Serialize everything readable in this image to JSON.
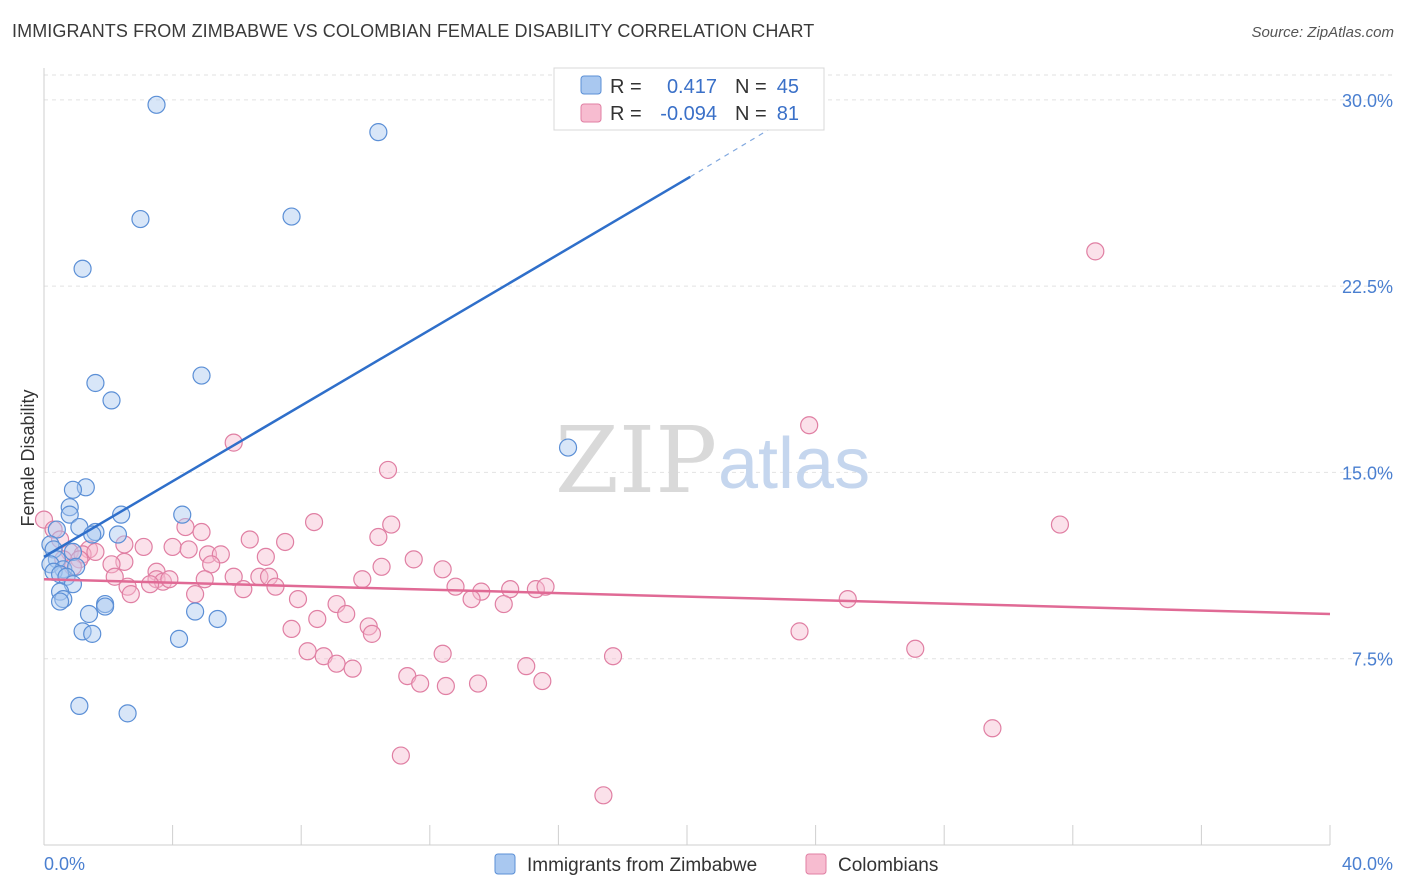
{
  "header": {
    "title": "IMMIGRANTS FROM ZIMBABWE VS COLOMBIAN FEMALE DISABILITY CORRELATION CHART",
    "source": "Source: ZipAtlas.com"
  },
  "watermark": {
    "zip": "ZIP",
    "atlas": "atlas"
  },
  "legend": {
    "r_label": "R =",
    "n_label": "N =",
    "series": [
      {
        "r": "0.417",
        "n": "45"
      },
      {
        "r": "-0.094",
        "n": "81"
      }
    ]
  },
  "chart_data": {
    "type": "scatter",
    "title": "IMMIGRANTS FROM ZIMBABWE VS COLOMBIAN FEMALE DISABILITY CORRELATION CHART",
    "xlabel": "",
    "ylabel": "Female Disability",
    "xlim": [
      0,
      40
    ],
    "ylim": [
      0,
      31
    ],
    "x_tick_labels": [
      "0.0%",
      "40.0%"
    ],
    "y_ticks": [
      7.5,
      15.0,
      22.5,
      30.0
    ],
    "y_tick_labels": [
      "7.5%",
      "15.0%",
      "22.5%",
      "30.0%"
    ],
    "grid": true,
    "legend_position": "top-center",
    "colors": {
      "zimbabwe_fill": "#a9c8f0",
      "zimbabwe_stroke": "#5b8fd6",
      "zimbabwe_line": "#2f6fca",
      "colombians_fill": "#f7bcd0",
      "colombians_stroke": "#e07fa3",
      "colombians_line": "#e06a95",
      "tick_label": "#4a7fd0",
      "grid": "#e2e2e2"
    },
    "series": [
      {
        "name": "Immigrants from Zimbabwe",
        "r": 0.417,
        "n": 45,
        "trend": {
          "x": [
            0.0,
            20.1
          ],
          "y": [
            11.6,
            26.9
          ],
          "dashed_to": [
            22.8,
            29.0
          ]
        },
        "points": [
          [
            3.5,
            29.8
          ],
          [
            10.4,
            28.7
          ],
          [
            3.0,
            25.2
          ],
          [
            7.7,
            25.3
          ],
          [
            1.2,
            23.2
          ],
          [
            1.6,
            18.6
          ],
          [
            2.1,
            17.9
          ],
          [
            4.9,
            18.9
          ],
          [
            16.3,
            16.0
          ],
          [
            1.3,
            14.4
          ],
          [
            0.9,
            14.3
          ],
          [
            0.8,
            13.6
          ],
          [
            0.8,
            13.3
          ],
          [
            2.4,
            13.3
          ],
          [
            4.3,
            13.3
          ],
          [
            0.4,
            12.7
          ],
          [
            1.1,
            12.8
          ],
          [
            1.6,
            12.6
          ],
          [
            2.3,
            12.5
          ],
          [
            1.5,
            12.5
          ],
          [
            0.2,
            12.1
          ],
          [
            0.3,
            11.9
          ],
          [
            0.9,
            11.8
          ],
          [
            0.4,
            11.5
          ],
          [
            0.2,
            11.3
          ],
          [
            0.6,
            11.1
          ],
          [
            1.0,
            11.2
          ],
          [
            0.3,
            11.0
          ],
          [
            0.5,
            10.9
          ],
          [
            0.7,
            10.8
          ],
          [
            0.9,
            10.5
          ],
          [
            0.5,
            10.2
          ],
          [
            0.6,
            9.9
          ],
          [
            0.5,
            9.8
          ],
          [
            1.9,
            9.7
          ],
          [
            1.9,
            9.6
          ],
          [
            1.4,
            9.3
          ],
          [
            4.7,
            9.4
          ],
          [
            5.4,
            9.1
          ],
          [
            1.2,
            8.6
          ],
          [
            1.5,
            8.5
          ],
          [
            4.2,
            8.3
          ],
          [
            1.1,
            5.6
          ],
          [
            2.6,
            5.3
          ]
        ]
      },
      {
        "name": "Colombians",
        "r": -0.094,
        "n": 81,
        "trend": {
          "x": [
            0.0,
            40.0
          ],
          "y": [
            10.7,
            9.3
          ]
        },
        "points": [
          [
            32.7,
            23.9
          ],
          [
            5.9,
            16.2
          ],
          [
            23.8,
            16.9
          ],
          [
            10.7,
            15.1
          ],
          [
            0.0,
            13.1
          ],
          [
            0.3,
            12.7
          ],
          [
            8.4,
            13.0
          ],
          [
            4.4,
            12.8
          ],
          [
            10.8,
            12.9
          ],
          [
            31.6,
            12.9
          ],
          [
            4.9,
            12.6
          ],
          [
            10.4,
            12.4
          ],
          [
            6.4,
            12.3
          ],
          [
            7.5,
            12.2
          ],
          [
            0.5,
            12.3
          ],
          [
            2.5,
            12.1
          ],
          [
            3.1,
            12.0
          ],
          [
            4.0,
            12.0
          ],
          [
            4.5,
            11.9
          ],
          [
            1.4,
            11.9
          ],
          [
            0.8,
            11.8
          ],
          [
            1.2,
            11.7
          ],
          [
            1.6,
            11.8
          ],
          [
            5.1,
            11.7
          ],
          [
            5.5,
            11.7
          ],
          [
            6.9,
            11.6
          ],
          [
            0.6,
            11.5
          ],
          [
            1.1,
            11.5
          ],
          [
            2.5,
            11.4
          ],
          [
            2.1,
            11.3
          ],
          [
            5.2,
            11.3
          ],
          [
            10.5,
            11.2
          ],
          [
            11.5,
            11.5
          ],
          [
            12.4,
            11.1
          ],
          [
            0.9,
            11.2
          ],
          [
            3.5,
            11.0
          ],
          [
            2.2,
            10.8
          ],
          [
            3.5,
            10.7
          ],
          [
            3.7,
            10.6
          ],
          [
            3.9,
            10.7
          ],
          [
            5.0,
            10.7
          ],
          [
            5.9,
            10.8
          ],
          [
            6.7,
            10.8
          ],
          [
            7.0,
            10.8
          ],
          [
            9.9,
            10.7
          ],
          [
            2.6,
            10.4
          ],
          [
            3.3,
            10.5
          ],
          [
            6.2,
            10.3
          ],
          [
            7.2,
            10.4
          ],
          [
            12.8,
            10.4
          ],
          [
            13.6,
            10.2
          ],
          [
            14.5,
            10.3
          ],
          [
            15.3,
            10.3
          ],
          [
            15.6,
            10.4
          ],
          [
            2.7,
            10.1
          ],
          [
            4.7,
            10.1
          ],
          [
            7.9,
            9.9
          ],
          [
            9.1,
            9.7
          ],
          [
            13.3,
            9.9
          ],
          [
            14.3,
            9.7
          ],
          [
            25.0,
            9.9
          ],
          [
            8.5,
            9.1
          ],
          [
            9.4,
            9.3
          ],
          [
            10.1,
            8.8
          ],
          [
            7.7,
            8.7
          ],
          [
            10.2,
            8.5
          ],
          [
            23.5,
            8.6
          ],
          [
            8.2,
            7.8
          ],
          [
            8.7,
            7.6
          ],
          [
            9.1,
            7.3
          ],
          [
            12.4,
            7.7
          ],
          [
            17.7,
            7.6
          ],
          [
            27.1,
            7.9
          ],
          [
            9.6,
            7.1
          ],
          [
            11.3,
            6.8
          ],
          [
            11.7,
            6.5
          ],
          [
            12.5,
            6.4
          ],
          [
            13.5,
            6.5
          ],
          [
            15.0,
            7.2
          ],
          [
            15.5,
            6.6
          ],
          [
            29.5,
            4.7
          ],
          [
            11.1,
            3.6
          ],
          [
            17.4,
            2.0
          ]
        ]
      }
    ]
  },
  "bottom_legend": {
    "items": [
      {
        "label": "Immigrants from Zimbabwe"
      },
      {
        "label": "Colombians"
      }
    ]
  }
}
